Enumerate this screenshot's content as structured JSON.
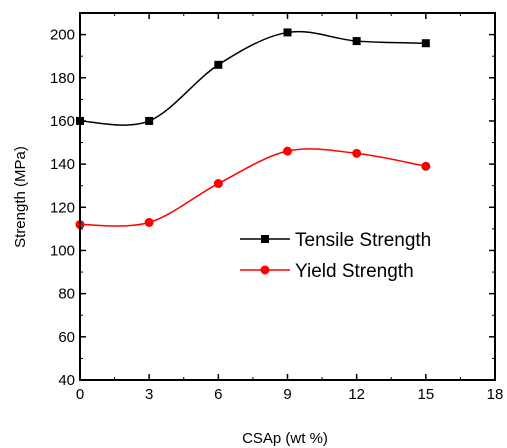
{
  "chart_data": {
    "type": "line",
    "xlabel": "CSAp (wt %)",
    "ylabel": "Strength (MPa)",
    "xlim": [
      0,
      18
    ],
    "ylim": [
      40,
      210
    ],
    "x_ticks": [
      0,
      3,
      6,
      9,
      12,
      15,
      18
    ],
    "y_ticks": [
      40,
      60,
      80,
      100,
      120,
      140,
      160,
      180,
      200
    ],
    "x": [
      0,
      3,
      6,
      9,
      12,
      15
    ],
    "series": [
      {
        "name": "Tensile Strength",
        "values": [
          160,
          160,
          186,
          201,
          197,
          196
        ],
        "color": "#000000",
        "marker": "square"
      },
      {
        "name": "Yield Strength",
        "values": [
          112,
          113,
          131,
          146,
          145,
          139
        ],
        "color": "#ff0000",
        "marker": "circle"
      }
    ],
    "legend_placement": "center-right",
    "grid": false
  }
}
